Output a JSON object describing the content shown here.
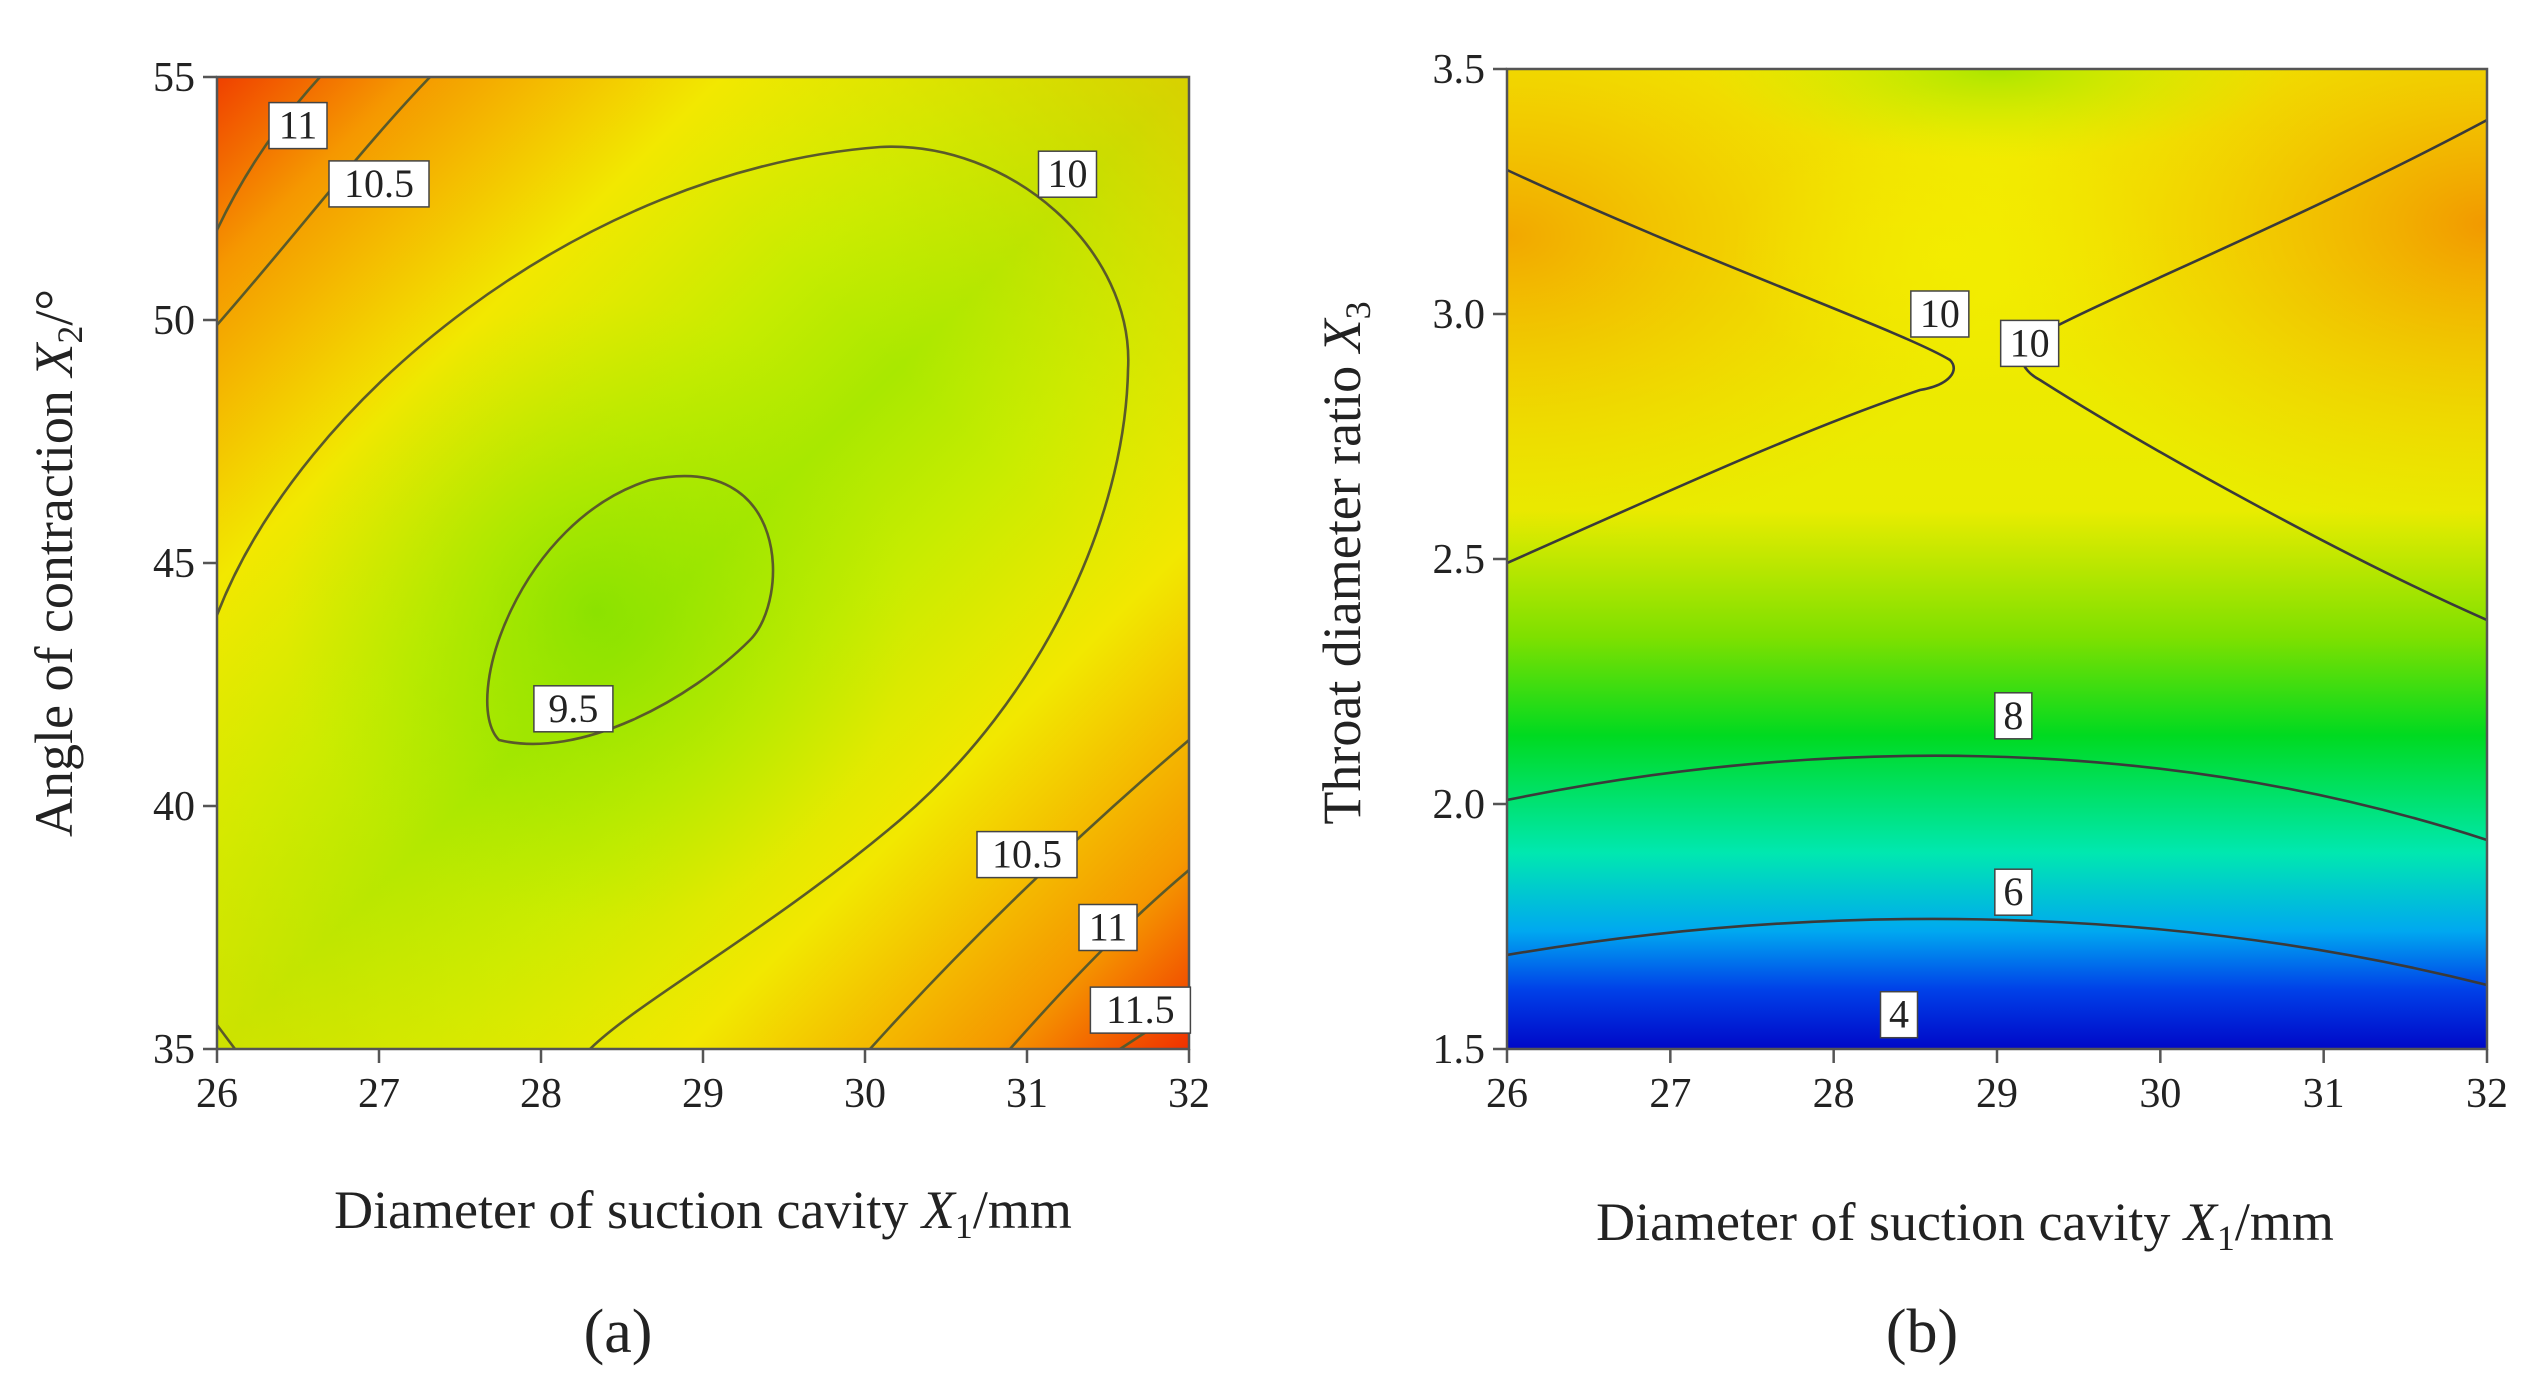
{
  "chart_data": [
    {
      "type": "contour",
      "panel_label": "(a)",
      "xlabel": {
        "prefix": "Diameter of suction cavity ",
        "var": "X",
        "sub": "1",
        "suffix": "/mm"
      },
      "ylabel": {
        "prefix": "Angle of contraction ",
        "var": "X",
        "sub": "2",
        "suffix": "/°"
      },
      "xlim": [
        26,
        32
      ],
      "ylim": [
        35,
        55
      ],
      "xticks": [
        26,
        27,
        28,
        29,
        30,
        31,
        32
      ],
      "yticks": [
        35,
        40,
        45,
        50,
        55
      ],
      "contour_levels": [
        {
          "level": "9.5",
          "x": 28.2,
          "y": 42.0
        },
        {
          "level": "10",
          "x": 31.25,
          "y": 53.0
        },
        {
          "level": "10.5",
          "x": 27.0,
          "y": 52.8
        },
        {
          "level": "11",
          "x": 26.5,
          "y": 54.0
        },
        {
          "level": "10.5",
          "x": 31.0,
          "y": 39.0
        },
        {
          "level": "11",
          "x": 31.5,
          "y": 37.5
        },
        {
          "level": "11.5",
          "x": 31.7,
          "y": 35.8
        }
      ],
      "colors": {
        "low": "#8ee000",
        "mid": "#f0f000",
        "high": "#f03000"
      }
    },
    {
      "type": "contour",
      "panel_label": "(b)",
      "xlabel": {
        "prefix": "Diameter of suction cavity ",
        "var": "X",
        "sub": "1",
        "suffix": "/mm"
      },
      "ylabel": {
        "prefix": "Throat diameter ratio ",
        "var": "X",
        "sub": "3",
        "suffix": ""
      },
      "xlim": [
        26,
        32
      ],
      "ylim": [
        1.5,
        3.5
      ],
      "xticks": [
        26,
        27,
        28,
        29,
        30,
        31,
        32
      ],
      "yticks": [
        "1.5",
        "2.0",
        "2.5",
        "3.0",
        "3.5"
      ],
      "contour_levels": [
        {
          "level": "10",
          "x": 28.65,
          "y": 3.0
        },
        {
          "level": "10",
          "x": 29.2,
          "y": 2.94
        },
        {
          "level": "8",
          "x": 29.1,
          "y": 2.18
        },
        {
          "level": "6",
          "x": 29.1,
          "y": 1.82
        },
        {
          "level": "4",
          "x": 28.4,
          "y": 1.57
        }
      ],
      "colors": {
        "low": "#0010e0",
        "mid": "#00e020",
        "high": "#f0a000"
      }
    }
  ]
}
